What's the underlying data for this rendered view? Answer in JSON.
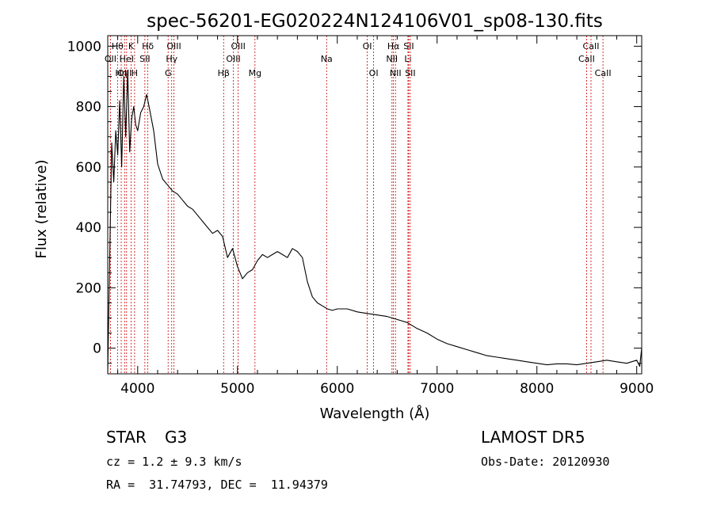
{
  "chart_data": {
    "type": "line",
    "title": "spec-56201-EG020224N124106V01_sp08-130.fits",
    "xlabel": "Wavelength (Å)",
    "ylabel": "Flux (relative)",
    "xlim": [
      3700,
      9050
    ],
    "ylim": [
      -85,
      1035
    ],
    "xticks": [
      4000,
      5000,
      6000,
      7000,
      8000,
      9000
    ],
    "yticks": [
      0,
      200,
      400,
      600,
      800,
      1000
    ],
    "grid": false,
    "series": [
      {
        "x": [
          3700,
          3720,
          3740,
          3760,
          3780,
          3800,
          3820,
          3840,
          3860,
          3880,
          3900,
          3920,
          3940,
          3960,
          3980,
          4000,
          4030,
          4060,
          4090,
          4120,
          4160,
          4200,
          4250,
          4300,
          4350,
          4400,
          4450,
          4500,
          4550,
          4600,
          4650,
          4700,
          4750,
          4800,
          4850,
          4900,
          4950,
          5000,
          5050,
          5100,
          5150,
          5200,
          5250,
          5300,
          5350,
          5400,
          5450,
          5500,
          5550,
          5600,
          5650,
          5700,
          5750,
          5800,
          5850,
          5900,
          5950,
          6000,
          6100,
          6200,
          6300,
          6400,
          6500,
          6600,
          6700,
          6800,
          6900,
          7000,
          7100,
          7200,
          7300,
          7400,
          7500,
          7600,
          7700,
          7800,
          7900,
          8000,
          8100,
          8200,
          8300,
          8400,
          8500,
          8600,
          8700,
          8800,
          8900,
          9000,
          9030,
          9050
        ],
        "y": [
          -80,
          300,
          680,
          550,
          720,
          640,
          820,
          600,
          900,
          700,
          920,
          650,
          760,
          800,
          740,
          720,
          780,
          800,
          840,
          790,
          720,
          610,
          560,
          540,
          520,
          510,
          490,
          470,
          460,
          440,
          420,
          400,
          380,
          390,
          370,
          300,
          330,
          270,
          230,
          250,
          260,
          290,
          310,
          300,
          310,
          320,
          310,
          300,
          330,
          320,
          300,
          220,
          170,
          150,
          140,
          130,
          125,
          130,
          130,
          120,
          115,
          110,
          105,
          95,
          85,
          65,
          50,
          30,
          15,
          5,
          -5,
          -15,
          -25,
          -30,
          -35,
          -40,
          -45,
          -50,
          -55,
          -52,
          -52,
          -55,
          -50,
          -45,
          -40,
          -45,
          -50,
          -40,
          -60,
          0
        ]
      }
    ],
    "lines": [
      {
        "label": "Hθ",
        "x": 3798,
        "row": 1
      },
      {
        "label": "OII",
        "x": 3727,
        "row": 2
      },
      {
        "label": "Hη",
        "x": 3835,
        "row": 3
      },
      {
        "label": "OIII",
        "x": 3869,
        "row": 3
      },
      {
        "label": "HeI",
        "x": 3889,
        "row": 2
      },
      {
        "label": "K",
        "x": 3934,
        "row": 1
      },
      {
        "label": "H",
        "x": 3969,
        "row": 3
      },
      {
        "label": "Hδ",
        "x": 4102,
        "row": 1
      },
      {
        "label": "SII",
        "x": 4072,
        "row": 2
      },
      {
        "label": "OIII",
        "x": 4363,
        "row": 1
      },
      {
        "label": "Hγ",
        "x": 4341,
        "row": 2
      },
      {
        "label": "G",
        "x": 4305,
        "row": 3
      },
      {
        "label": "OIII",
        "x": 5007,
        "row": 1
      },
      {
        "label": "OIII",
        "x": 4959,
        "row": 2
      },
      {
        "label": "Hβ",
        "x": 4861,
        "row": 3
      },
      {
        "label": "Mg",
        "x": 5175,
        "row": 3
      },
      {
        "label": "Na",
        "x": 5893,
        "row": 2
      },
      {
        "label": "OI",
        "x": 6300,
        "row": 1
      },
      {
        "label": "OI",
        "x": 6364,
        "row": 3
      },
      {
        "label": "Hα",
        "x": 6563,
        "row": 1
      },
      {
        "label": "NII",
        "x": 6548,
        "row": 2
      },
      {
        "label": "NII",
        "x": 6583,
        "row": 3
      },
      {
        "label": "Li",
        "x": 6708,
        "row": 2
      },
      {
        "label": "SII",
        "x": 6716,
        "row": 1
      },
      {
        "label": "SII",
        "x": 6731,
        "row": 3
      },
      {
        "label": "CaII",
        "x": 8542,
        "row": 1
      },
      {
        "label": "CaII",
        "x": 8498,
        "row": 2
      },
      {
        "label": "CaII",
        "x": 8662,
        "row": 3
      }
    ]
  },
  "info": {
    "object_class": "STAR",
    "subclass": "G3",
    "cz_line": "cz = 1.2 ± 9.3 km/s",
    "coords_line": "RA =  31.74793, DEC =  11.94379",
    "survey": "LAMOST DR5",
    "obs_date_line": "Obs-Date: 20120930"
  },
  "colors": {
    "spectrum": "#000000",
    "line_marker": "#cc0000",
    "axes": "#000000"
  }
}
